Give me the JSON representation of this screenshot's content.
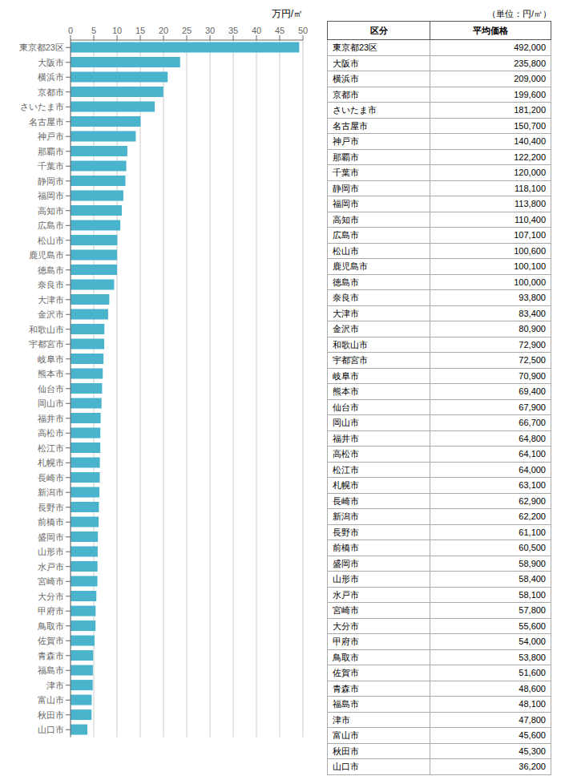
{
  "chart_data": {
    "type": "bar",
    "orientation": "horizontal",
    "xlabel": "万円/㎡",
    "categories": [
      "東京都23区",
      "大阪市",
      "横浜市",
      "京都市",
      "さいたま市",
      "名古屋市",
      "神戸市",
      "那覇市",
      "千葉市",
      "静岡市",
      "福岡市",
      "高知市",
      "広島市",
      "松山市",
      "鹿児島市",
      "徳島市",
      "奈良市",
      "大津市",
      "金沢市",
      "和歌山市",
      "宇都宮市",
      "岐阜市",
      "熊本市",
      "仙台市",
      "岡山市",
      "福井市",
      "高松市",
      "松江市",
      "札幌市",
      "長崎市",
      "新潟市",
      "長野市",
      "前橋市",
      "盛岡市",
      "山形市",
      "水戸市",
      "宮崎市",
      "大分市",
      "甲府市",
      "鳥取市",
      "佐賀市",
      "青森市",
      "福島市",
      "津市",
      "富山市",
      "秋田市",
      "山口市"
    ],
    "values": [
      49.2,
      23.58,
      20.9,
      19.96,
      18.12,
      15.07,
      14.04,
      12.22,
      12.0,
      11.81,
      11.38,
      11.04,
      10.71,
      10.06,
      10.01,
      10.0,
      9.38,
      8.34,
      8.09,
      7.29,
      7.25,
      7.09,
      6.94,
      6.79,
      6.67,
      6.48,
      6.41,
      6.4,
      6.31,
      6.29,
      6.22,
      6.11,
      6.05,
      5.89,
      5.84,
      5.81,
      5.78,
      5.56,
      5.4,
      5.38,
      5.16,
      4.86,
      4.81,
      4.78,
      4.56,
      4.53,
      3.62
    ],
    "color": "#4ab4cc",
    "xlim": [
      0,
      50
    ],
    "xticks": [
      0,
      5,
      10,
      15,
      20,
      25,
      30,
      35,
      40,
      45,
      50
    ],
    "grid": true,
    "table": {
      "unit": "（単位：円/㎡）",
      "columns": [
        "区分",
        "平均価格"
      ],
      "values": [
        492000,
        235800,
        209000,
        199600,
        181200,
        150700,
        140400,
        122200,
        120000,
        118100,
        113800,
        110400,
        107100,
        100600,
        100100,
        100000,
        93800,
        83400,
        80900,
        72900,
        72500,
        70900,
        69400,
        67900,
        66700,
        64800,
        64100,
        64000,
        63100,
        62900,
        62200,
        61100,
        60500,
        58900,
        58400,
        58100,
        57800,
        55600,
        54000,
        53800,
        51600,
        48600,
        48100,
        47800,
        45600,
        45300,
        36200
      ],
      "value_labels": [
        "492,000",
        "235,800",
        "209,000",
        "199,600",
        "181,200",
        "150,700",
        "140,400",
        "122,200",
        "120,000",
        "118,100",
        "113,800",
        "110,400",
        "107,100",
        "100,600",
        "100,100",
        "100,000",
        "93,800",
        "83,400",
        "80,900",
        "72,900",
        "72,500",
        "70,900",
        "69,400",
        "67,900",
        "66,700",
        "64,800",
        "64,100",
        "64,000",
        "63,100",
        "62,900",
        "62,200",
        "61,100",
        "60,500",
        "58,900",
        "58,400",
        "58,100",
        "57,800",
        "55,600",
        "54,000",
        "53,800",
        "51,600",
        "48,600",
        "48,100",
        "47,800",
        "45,600",
        "45,300",
        "36,200"
      ]
    }
  }
}
